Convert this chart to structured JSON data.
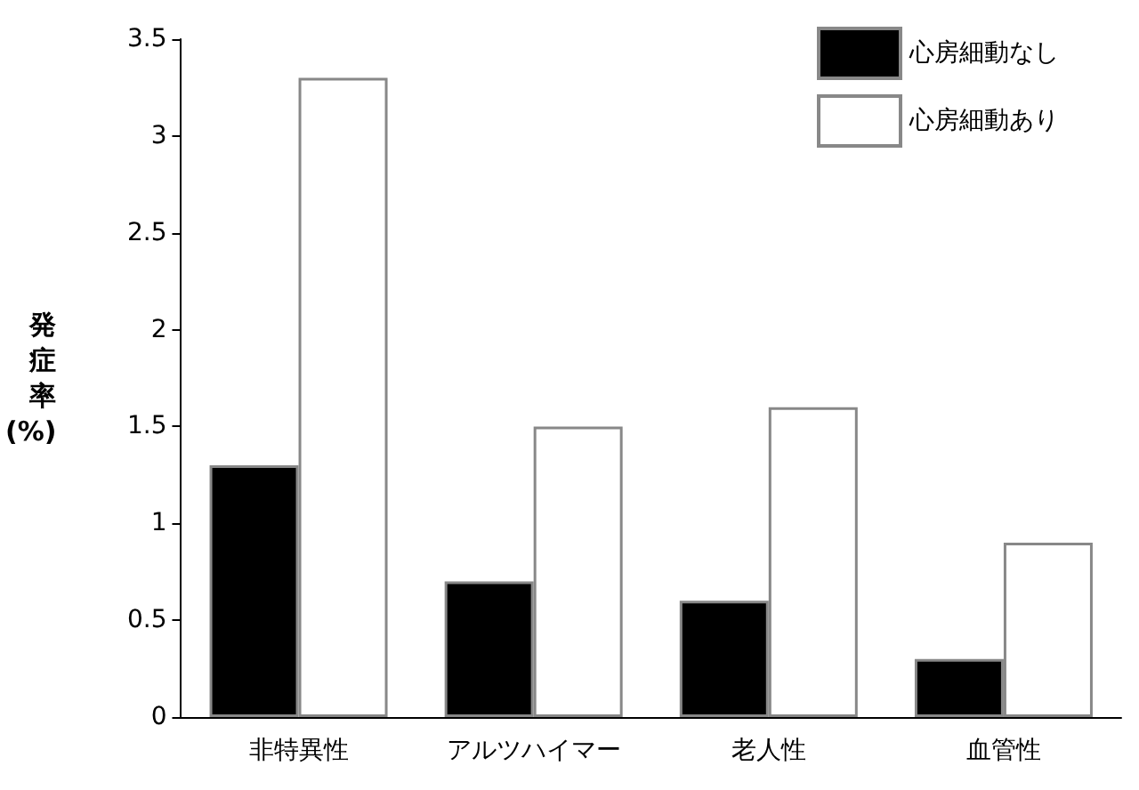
{
  "chart_data": {
    "type": "bar",
    "categories": [
      "非特異性",
      "アルツハイマー",
      "老人性",
      "血管性"
    ],
    "ylabel": "発症率(%)",
    "series": [
      {
        "name": "心房細動なし",
        "color": "#000000",
        "values": [
          1.3,
          0.7,
          0.6,
          0.3
        ]
      },
      {
        "name": "心房細動あり",
        "color": "#ffffff",
        "values": [
          3.3,
          1.5,
          1.6,
          0.9
        ]
      }
    ],
    "ylim": [
      0,
      3.5
    ],
    "yticks": [
      0,
      0.5,
      1,
      1.5,
      2,
      2.5,
      3,
      3.5
    ],
    "grid": false,
    "legend": "top right"
  }
}
